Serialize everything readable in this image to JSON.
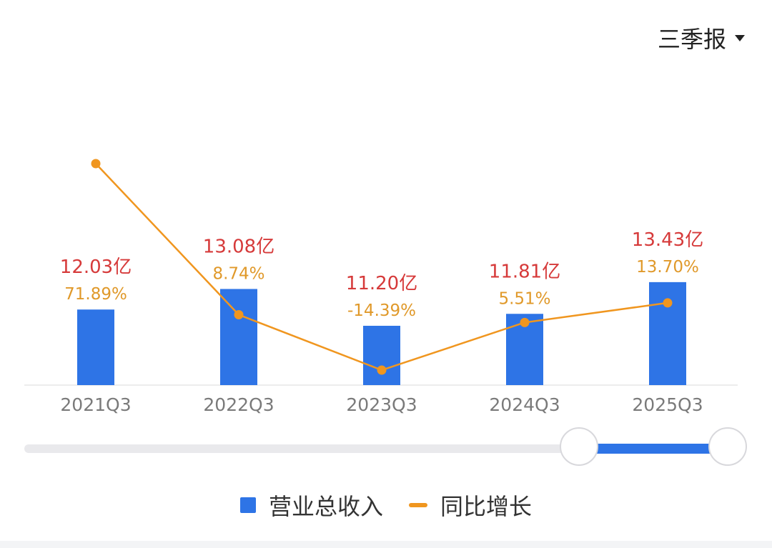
{
  "period_selector": {
    "label": "三季报"
  },
  "colors": {
    "bar": "#2e74e6",
    "line": "#f0961f",
    "value_label": "#d63a3a",
    "growth_label": "#e0992a",
    "axis_text": "#7a7a7a",
    "legend_text": "#333333"
  },
  "legend": {
    "items": [
      {
        "label": "营业总收入",
        "swatch": "bar"
      },
      {
        "label": "同比增长",
        "swatch": "line"
      }
    ]
  },
  "chart_data": {
    "type": "bar",
    "categories": [
      "2021Q3",
      "2022Q3",
      "2023Q3",
      "2024Q3",
      "2025Q3"
    ],
    "series": [
      {
        "name": "营业总收入",
        "type": "bar",
        "values": [
          12.03,
          13.08,
          11.2,
          11.81,
          13.43
        ],
        "labels": [
          "12.03亿",
          "13.08亿",
          "11.20亿",
          "11.81亿",
          "13.43亿"
        ]
      },
      {
        "name": "同比增长",
        "type": "line",
        "values": [
          71.89,
          8.74,
          -14.39,
          5.51,
          13.7
        ],
        "labels": [
          "71.89%",
          "8.74%",
          "-14.39%",
          "5.51%",
          "13.70%"
        ]
      }
    ],
    "legend_position": "bottom",
    "grid": false
  },
  "range_slider": {
    "start": 0.78,
    "end": 1.0
  }
}
